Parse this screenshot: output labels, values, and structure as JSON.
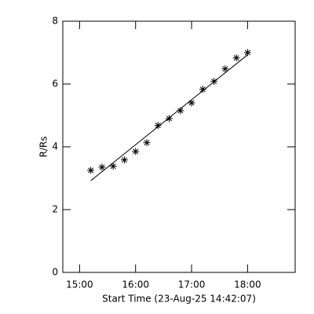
{
  "chart_data": {
    "type": "scatter",
    "xlabel": "Start Time (23-Aug-25 14:42:07)",
    "ylabel": "R/Rs",
    "xlim": [
      14.7,
      18.85
    ],
    "ylim": [
      0,
      8
    ],
    "xticks": [
      {
        "value": 15,
        "label": "15:00"
      },
      {
        "value": 16,
        "label": "16:00"
      },
      {
        "value": 17,
        "label": "17:00"
      },
      {
        "value": 18,
        "label": "18:00"
      }
    ],
    "yticks": [
      0,
      2,
      4,
      6,
      8
    ],
    "color": "#000000",
    "series": [
      {
        "marker": "asterisk",
        "x": [
          15.2,
          15.4,
          15.6,
          15.8,
          16.0,
          16.2,
          16.4,
          16.6,
          16.8,
          17.0,
          17.2,
          17.4,
          17.6,
          17.8,
          18.0
        ],
        "values": [
          3.25,
          3.35,
          3.38,
          3.58,
          3.85,
          4.13,
          4.68,
          4.9,
          5.15,
          5.4,
          5.83,
          6.08,
          6.48,
          6.83,
          7.0
        ]
      },
      {
        "marker": "line",
        "x": [
          15.2,
          18.0
        ],
        "values": [
          2.92,
          6.93
        ]
      }
    ]
  }
}
